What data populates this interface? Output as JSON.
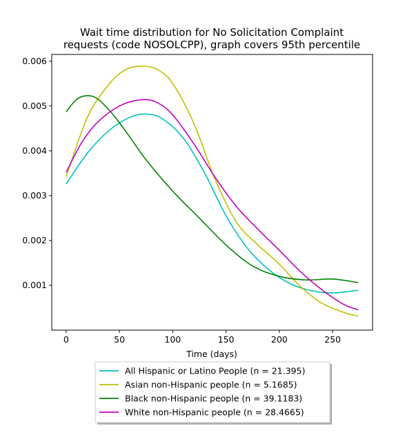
{
  "chart_data": {
    "type": "line",
    "title": [
      "Wait time distribution  for No Solicitation Complaint",
      "requests (code NOSOLCPP), graph covers 95th percentile"
    ],
    "xlabel": "Time (days)",
    "ylabel": "",
    "xlim": [
      -13.5,
      287.5
    ],
    "ylim": [
      0.0,
      0.00615
    ],
    "xticks": [
      0,
      50,
      100,
      150,
      200,
      250
    ],
    "xtick_labels": [
      "0",
      "50",
      "100",
      "150",
      "200",
      "250"
    ],
    "yticks": [
      0.001,
      0.002,
      0.003,
      0.004,
      0.005,
      0.006
    ],
    "ytick_labels": [
      "0.001",
      "0.002",
      "0.003",
      "0.004",
      "0.005",
      "0.006"
    ],
    "grid": false,
    "legend_position": "below",
    "series": [
      {
        "name": "All Hispanic or Latino People (n = 21.395)",
        "color": "#00bfbf",
        "x": [
          0,
          20,
          40,
          60,
          75,
          90,
          110,
          130,
          150,
          170,
          190,
          210,
          230,
          250,
          274
        ],
        "y": [
          0.00326,
          0.00395,
          0.00445,
          0.00475,
          0.00482,
          0.00472,
          0.00428,
          0.0035,
          0.00255,
          0.00183,
          0.00135,
          0.00104,
          0.00088,
          0.00083,
          0.00089
        ]
      },
      {
        "name": "Asian non-Hispanic people (n = 5.1685)",
        "color": "#bfbf00",
        "x": [
          0,
          20,
          40,
          55,
          70,
          85,
          100,
          120,
          140,
          160,
          180,
          200,
          220,
          240,
          260,
          274
        ],
        "y": [
          0.00342,
          0.00475,
          0.00548,
          0.0058,
          0.00589,
          0.00582,
          0.0055,
          0.0046,
          0.00335,
          0.0024,
          0.0019,
          0.00147,
          0.00097,
          0.0006,
          0.0004,
          0.00031
        ]
      },
      {
        "name": "Black non-Hispanic people (n = 39.1183)",
        "color": "#008000",
        "x": [
          0,
          10,
          20,
          30,
          45,
          60,
          75,
          100,
          125,
          150,
          175,
          200,
          225,
          250,
          274
        ],
        "y": [
          0.00487,
          0.00515,
          0.00523,
          0.00515,
          0.00478,
          0.0043,
          0.0038,
          0.0031,
          0.0025,
          0.0019,
          0.00143,
          0.0012,
          0.00112,
          0.00114,
          0.00106
        ]
      },
      {
        "name": "White non-Hispanic people (n = 28.4665)",
        "color": "#bf00bf",
        "x": [
          0,
          15,
          30,
          50,
          70,
          85,
          100,
          120,
          140,
          160,
          180,
          200,
          220,
          240,
          260,
          274
        ],
        "y": [
          0.00352,
          0.0042,
          0.00465,
          0.005,
          0.00514,
          0.00508,
          0.0048,
          0.00415,
          0.0034,
          0.00275,
          0.00225,
          0.00178,
          0.0013,
          0.0009,
          0.00058,
          0.00045
        ]
      }
    ]
  }
}
